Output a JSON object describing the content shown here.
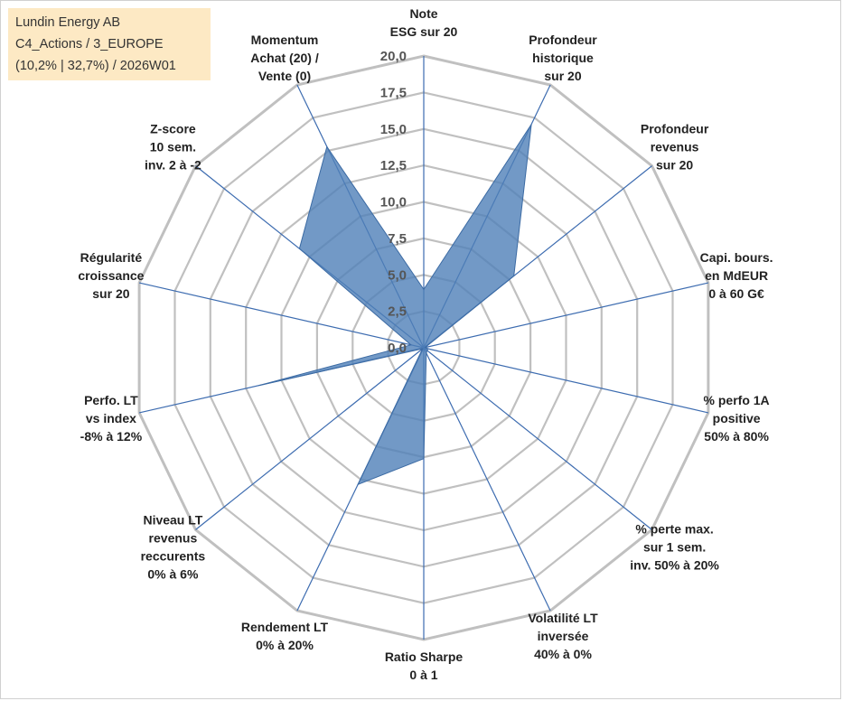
{
  "info": {
    "line1": "Lundin Energy AB",
    "line2": "C4_Actions / 3_EUROPE",
    "line3": "(10,2% | 32,7%) / 2026W01"
  },
  "chart_data": {
    "type": "radar",
    "title": "",
    "rmax": 20,
    "ticks": [
      "0,0",
      "2,5",
      "5,0",
      "7,5",
      "10,0",
      "12,5",
      "15,0",
      "17,5",
      "20,0"
    ],
    "axes": [
      {
        "label": [
          "Note",
          "ESG sur 20"
        ]
      },
      {
        "label": [
          "Profondeur",
          "historique",
          "sur 20"
        ]
      },
      {
        "label": [
          "Profondeur",
          "revenus",
          "sur 20"
        ]
      },
      {
        "label": [
          "Capi. bours.",
          "en MdEUR",
          "0 à 60 G€"
        ]
      },
      {
        "label": [
          "% perfo 1A",
          "positive",
          "50% à 80%"
        ]
      },
      {
        "label": [
          "% perte max.",
          "sur 1 sem.",
          "inv. 50% à 20%"
        ]
      },
      {
        "label": [
          "Volatilité LT",
          "inversée",
          "40% à 0%"
        ]
      },
      {
        "label": [
          "Ratio Sharpe",
          "0 à 1"
        ]
      },
      {
        "label": [
          "Rendement LT",
          "0% à 20%"
        ]
      },
      {
        "label": [
          "Niveau LT",
          "revenus",
          "reccurents",
          "0% à 6%"
        ]
      },
      {
        "label": [
          "Perfo. LT",
          "vs index",
          "-8% à 12%"
        ]
      },
      {
        "label": [
          "Régularité",
          "croissance",
          "sur 20"
        ]
      },
      {
        "label": [
          "Z-score",
          "10 sem.",
          "inv. 2 à -2"
        ]
      },
      {
        "label": [
          "Momentum",
          "Achat (20) /",
          "Vente (0)"
        ]
      }
    ],
    "series": [
      {
        "name": "Lundin Energy AB",
        "values": [
          4,
          17,
          7.9,
          0.1,
          0.3,
          0.3,
          0.4,
          7.6,
          10.4,
          0.1,
          11.6,
          0.9,
          10.9,
          15.3
        ]
      }
    ],
    "colors": {
      "fill": "#4f7fb8",
      "stroke": "#3b6aa3",
      "grid": "#c0c0c0",
      "spoke": "#3d6cb0"
    }
  }
}
